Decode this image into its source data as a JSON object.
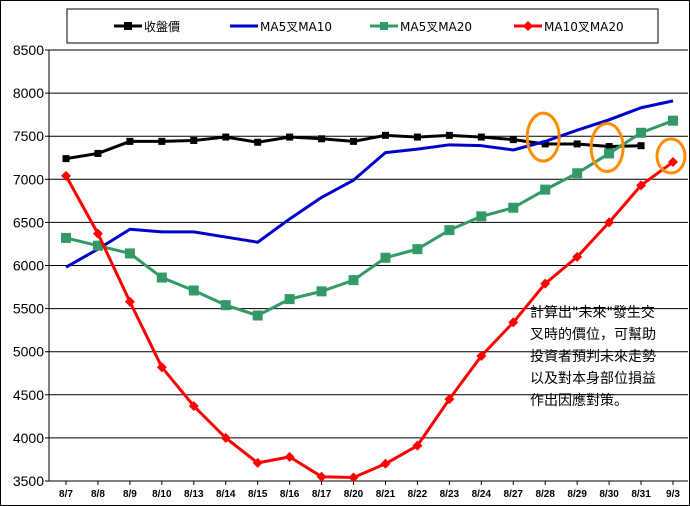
{
  "chart_data": {
    "type": "line",
    "categories": [
      "8/7",
      "8/8",
      "8/9",
      "8/10",
      "8/13",
      "8/14",
      "8/15",
      "8/16",
      "8/17",
      "8/20",
      "8/21",
      "8/22",
      "8/23",
      "8/24",
      "8/27",
      "8/28",
      "8/29",
      "8/30",
      "8/31",
      "9/3"
    ],
    "ylim": [
      3500,
      8500
    ],
    "yticks": [
      3500,
      4000,
      4500,
      5000,
      5500,
      6000,
      6500,
      7000,
      7500,
      8000,
      8500
    ],
    "grid": true,
    "legend_position": "top",
    "series": [
      {
        "name": "收盤價",
        "color": "#000000",
        "marker": "square",
        "values": [
          7240,
          7300,
          7440,
          7440,
          7450,
          7490,
          7430,
          7490,
          7470,
          7440,
          7510,
          7490,
          7510,
          7490,
          7460,
          7410,
          7410,
          7380,
          7390,
          null
        ]
      },
      {
        "name": "MA5叉MA10",
        "color": "#0000cc",
        "marker": "none",
        "values": [
          5980,
          6190,
          6420,
          6390,
          6390,
          6330,
          6270,
          6540,
          6790,
          6990,
          7310,
          7350,
          7400,
          7390,
          7340,
          7440,
          7570,
          7690,
          7830,
          7910
        ]
      },
      {
        "name": "MA5叉MA20",
        "color": "#339966",
        "marker": "square",
        "values": [
          6320,
          6230,
          6140,
          5860,
          5710,
          5540,
          5420,
          5610,
          5700,
          5830,
          6090,
          6190,
          6410,
          6570,
          6670,
          6880,
          7070,
          7300,
          7540,
          7680
        ]
      },
      {
        "name": "MA10叉MA20",
        "color": "#ff0000",
        "marker": "diamond",
        "values": [
          7040,
          6370,
          5580,
          4820,
          4370,
          4000,
          3710,
          3780,
          3550,
          3540,
          3700,
          3910,
          4450,
          4950,
          5340,
          5790,
          6100,
          6500,
          6930,
          7200
        ]
      }
    ],
    "highlight_points": [
      {
        "category": "8/28",
        "value": 7420
      },
      {
        "category": "8/30",
        "value": 7300
      },
      {
        "category": "9/3",
        "value": 7200
      }
    ],
    "annotation": {
      "lines": [
        "計算出\"未來\"發生交",
        "叉時的價位，可幫助",
        "投資者預判未來走勢",
        "以及對本身部位損益",
        "作出因應對策。"
      ]
    }
  }
}
